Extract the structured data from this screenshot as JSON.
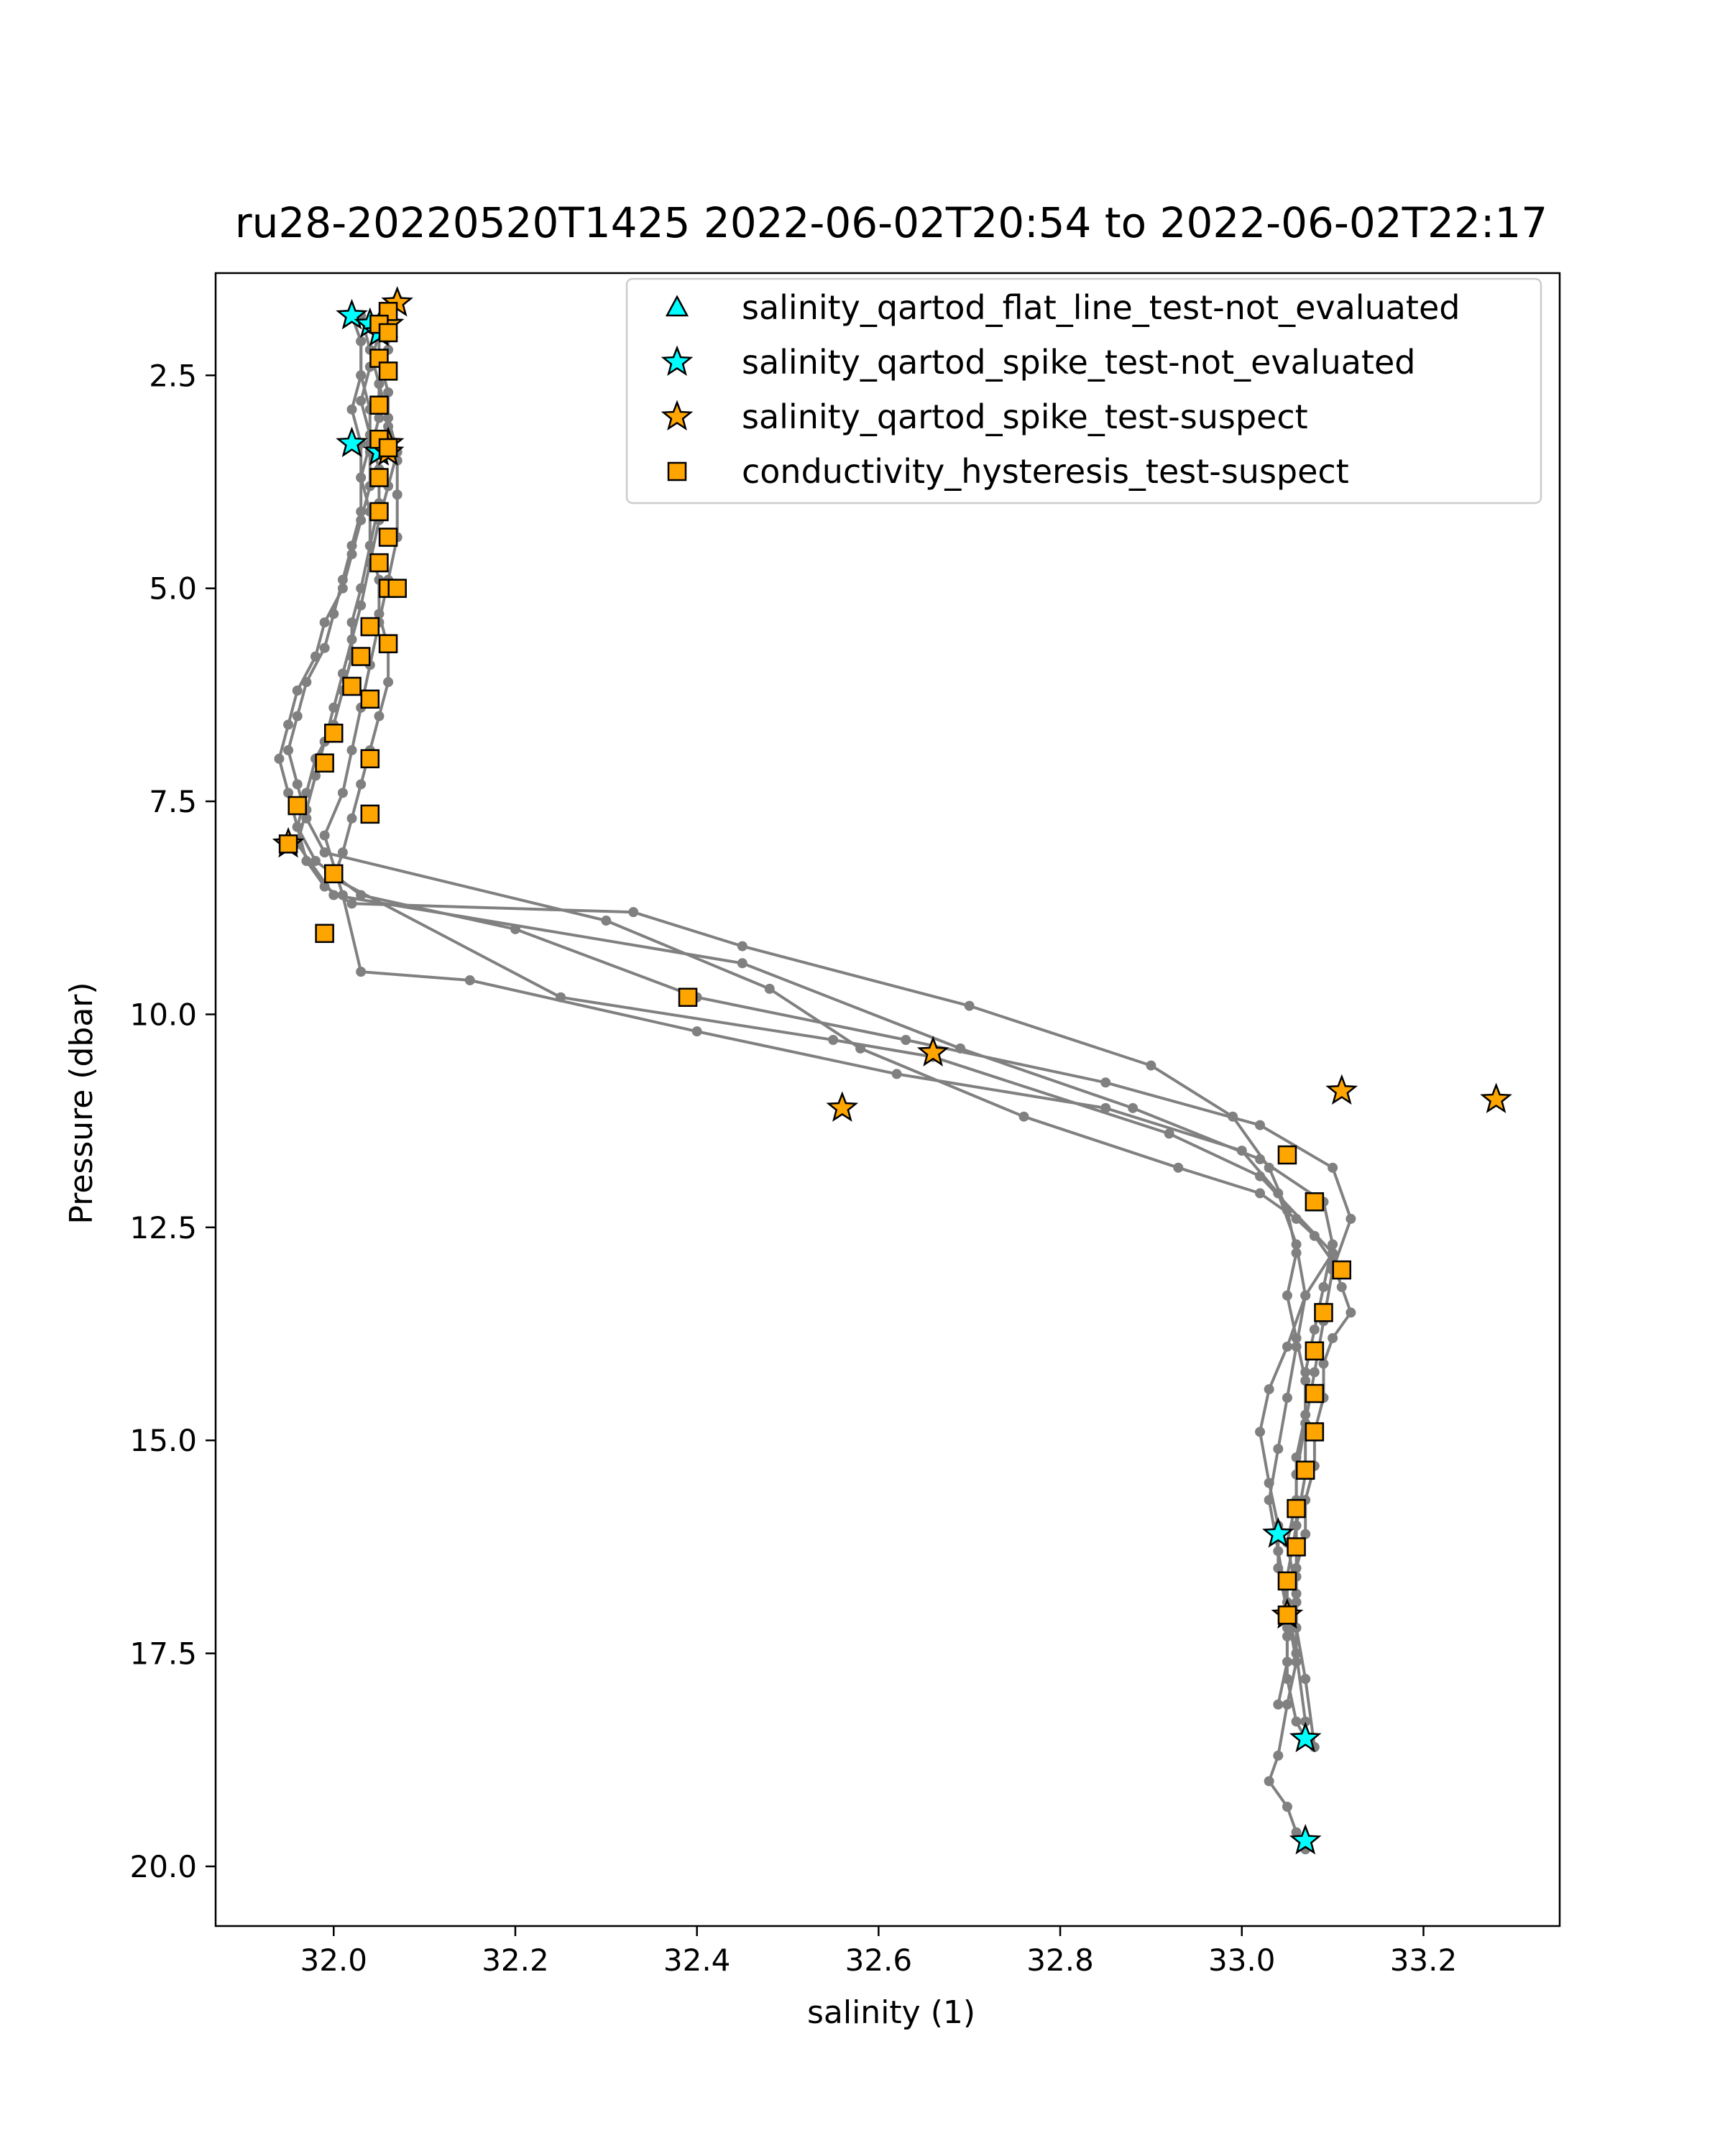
{
  "chart_data": {
    "type": "scatter",
    "title": "ru28-20220520T1425 2022-06-02T20:54 to 2022-06-02T22:17",
    "xlabel": "salinity (1)",
    "ylabel": "Pressure (dbar)",
    "xlim": [
      31.87,
      33.35
    ],
    "ylim": [
      20.7,
      1.3
    ],
    "y_inverted": true,
    "grid": false,
    "legend_position": "top-right",
    "x_ticks": [
      {
        "value": 32.0,
        "label": "32.0"
      },
      {
        "value": 32.2,
        "label": "32.2"
      },
      {
        "value": 32.4,
        "label": "32.4"
      },
      {
        "value": 32.6,
        "label": "32.6"
      },
      {
        "value": 32.8,
        "label": "32.8"
      },
      {
        "value": 33.0,
        "label": "33.0"
      },
      {
        "value": 33.2,
        "label": "33.2"
      }
    ],
    "y_ticks": [
      {
        "value": 2.5,
        "label": "2.5"
      },
      {
        "value": 5.0,
        "label": "5.0"
      },
      {
        "value": 7.5,
        "label": "7.5"
      },
      {
        "value": 10.0,
        "label": "10.0"
      },
      {
        "value": 12.5,
        "label": "12.5"
      },
      {
        "value": 15.0,
        "label": "15.0"
      },
      {
        "value": 17.5,
        "label": "17.5"
      },
      {
        "value": 20.0,
        "label": "20.0"
      }
    ],
    "colors": {
      "profile_line": "#808080",
      "cyan": "#00ffff",
      "orange": "#ffa500",
      "edge": "#000000"
    },
    "profiles": [
      {
        "x": [
          32.06,
          32.05,
          32.04,
          32.03,
          32.04,
          32.05,
          32.05,
          32.04,
          32.03,
          32.02,
          32.02,
          32.01,
          32.0,
          31.98,
          31.97,
          31.96,
          31.97,
          31.99,
          32.02,
          32.33,
          32.45,
          32.7,
          32.9,
          32.99,
          33.03,
          33.05,
          33.06,
          33.05,
          33.06,
          33.07,
          33.07,
          33.06,
          33.06,
          33.05,
          33.05,
          33.05,
          33.06,
          33.07
        ],
        "y": [
          1.7,
          2.0,
          2.4,
          2.8,
          3.2,
          3.6,
          4.0,
          4.5,
          5.0,
          5.4,
          5.8,
          6.2,
          6.6,
          7.0,
          7.4,
          7.8,
          8.2,
          8.5,
          8.7,
          8.8,
          9.2,
          9.9,
          10.6,
          11.2,
          11.8,
          12.3,
          12.8,
          13.3,
          13.8,
          14.3,
          14.8,
          15.4,
          16.0,
          16.6,
          17.2,
          17.8,
          18.3,
          18.5
        ]
      },
      {
        "x": [
          32.02,
          32.03,
          32.03,
          32.04,
          32.04,
          32.03,
          32.03,
          32.02,
          32.01,
          32.0,
          31.99,
          31.97,
          31.96,
          31.95,
          31.96,
          31.97,
          31.99,
          32.3,
          32.48,
          32.58,
          32.76,
          32.93,
          33.02,
          33.06,
          33.08,
          33.1,
          33.11,
          33.12,
          33.1,
          33.09,
          33.09,
          33.08,
          33.08,
          33.07,
          33.07,
          33.06,
          33.06,
          33.05,
          33.05,
          33.04
        ],
        "y": [
          1.8,
          2.1,
          2.5,
          2.9,
          3.3,
          3.7,
          4.1,
          4.5,
          4.9,
          5.3,
          5.7,
          6.1,
          6.5,
          6.9,
          7.3,
          7.7,
          8.1,
          8.9,
          9.7,
          10.4,
          11.2,
          11.8,
          12.1,
          12.4,
          12.6,
          12.9,
          13.2,
          13.5,
          13.8,
          14.1,
          14.5,
          14.9,
          15.3,
          15.7,
          16.1,
          16.5,
          16.9,
          17.3,
          17.6,
          18.1
        ]
      },
      {
        "x": [
          32.07,
          32.06,
          32.06,
          32.05,
          32.05,
          32.04,
          32.04,
          32.03,
          32.02,
          32.01,
          31.99,
          31.98,
          31.96,
          31.95,
          31.94,
          31.95,
          31.96,
          31.98,
          32.03,
          32.2,
          32.4,
          32.63,
          32.85,
          33.02,
          33.1,
          33.12,
          33.1,
          33.09,
          33.08,
          33.07,
          33.07,
          33.06,
          33.06,
          33.06,
          33.07,
          33.08
        ],
        "y": [
          1.6,
          1.9,
          2.2,
          2.6,
          3.0,
          3.4,
          3.8,
          4.2,
          4.6,
          5.0,
          5.4,
          5.8,
          6.2,
          6.6,
          7.0,
          7.4,
          7.8,
          8.2,
          8.6,
          9.0,
          9.8,
          10.3,
          10.8,
          11.3,
          11.8,
          12.4,
          13.0,
          13.6,
          14.2,
          14.8,
          15.4,
          16.0,
          16.6,
          17.2,
          17.8,
          18.6
        ]
      },
      {
        "x": [
          32.05,
          32.05,
          32.06,
          32.06,
          32.07,
          32.07,
          32.07,
          32.06,
          32.05,
          32.04,
          32.03,
          32.02,
          32.01,
          31.99,
          32.01,
          32.03,
          32.15,
          32.4,
          32.62,
          32.85,
          33.0,
          33.04,
          33.06,
          33.07,
          33.06,
          33.05,
          33.04,
          33.03,
          33.04,
          33.05,
          33.06
        ],
        "y": [
          2.0,
          2.3,
          2.7,
          3.1,
          3.5,
          3.9,
          4.4,
          4.9,
          5.4,
          5.9,
          6.4,
          6.9,
          7.4,
          7.9,
          8.6,
          9.5,
          9.6,
          10.2,
          10.7,
          11.1,
          11.6,
          12.1,
          12.7,
          13.3,
          13.9,
          14.5,
          15.1,
          15.7,
          16.3,
          16.9,
          17.5
        ]
      },
      {
        "x": [
          32.03,
          32.04,
          32.05,
          32.06,
          32.07,
          32.06,
          32.05,
          32.04,
          32.03,
          32.02,
          32.01,
          32.0,
          31.99,
          31.98,
          31.97,
          31.96,
          32.0,
          32.45,
          32.69,
          32.88,
          33.02,
          33.09,
          33.1,
          33.09,
          33.08,
          33.07,
          33.07,
          33.06,
          33.06,
          33.05,
          33.06,
          33.06,
          33.07
        ],
        "y": [
          1.8,
          2.2,
          2.6,
          3.0,
          3.4,
          3.8,
          4.2,
          4.7,
          5.2,
          5.6,
          6.0,
          6.4,
          6.8,
          7.2,
          7.6,
          8.0,
          8.6,
          9.4,
          10.4,
          11.1,
          11.7,
          12.2,
          12.7,
          13.2,
          13.7,
          14.2,
          14.7,
          15.2,
          15.7,
          16.2,
          16.8,
          17.5,
          18.3
        ]
      },
      {
        "x": [
          32.03,
          32.03,
          32.02,
          32.03,
          32.03,
          32.04,
          32.04,
          32.05,
          32.05,
          32.06,
          32.06,
          32.05,
          32.04,
          32.03,
          32.02,
          32.01,
          32.0,
          32.25,
          32.55,
          32.66,
          32.92,
          33.02,
          33.1,
          33.07,
          33.05,
          33.03,
          33.02,
          33.03,
          33.04,
          33.04,
          33.05,
          33.06,
          33.05,
          33.04,
          33.03,
          33.05,
          33.06,
          33.07
        ],
        "y": [
          2.1,
          2.5,
          2.9,
          3.3,
          3.7,
          4.1,
          4.5,
          4.9,
          5.3,
          5.7,
          6.1,
          6.5,
          6.9,
          7.3,
          7.7,
          8.1,
          8.4,
          9.8,
          10.3,
          10.5,
          11.4,
          11.9,
          12.8,
          13.3,
          13.9,
          14.4,
          14.9,
          15.5,
          16.0,
          16.5,
          17.0,
          17.6,
          18.1,
          18.7,
          19.0,
          19.3,
          19.6,
          19.8
        ]
      }
    ],
    "series": [
      {
        "name": "salinity_qartod_flat_line_test-not_evaluated",
        "marker": "triangle",
        "color": "#00ffff",
        "points": [
          [
            32.05,
            1.9
          ]
        ]
      },
      {
        "name": "salinity_qartod_spike_test-not_evaluated",
        "marker": "star",
        "color": "#00ffff",
        "points": [
          [
            32.02,
            1.8
          ],
          [
            32.04,
            1.9
          ],
          [
            32.05,
            2.0
          ],
          [
            32.02,
            3.3
          ],
          [
            32.05,
            3.4
          ],
          [
            33.04,
            16.1
          ],
          [
            33.07,
            18.5
          ],
          [
            33.07,
            19.7
          ]
        ]
      },
      {
        "name": "salinity_qartod_spike_test-suspect",
        "marker": "star",
        "color": "#ffa500",
        "points": [
          [
            32.07,
            1.65
          ],
          [
            32.06,
            1.9
          ],
          [
            32.06,
            3.3
          ],
          [
            32.06,
            3.4
          ],
          [
            31.95,
            8.0
          ],
          [
            32.56,
            11.1
          ],
          [
            32.66,
            10.45
          ],
          [
            33.11,
            10.9
          ],
          [
            33.28,
            11.0
          ],
          [
            33.05,
            17.05
          ]
        ]
      },
      {
        "name": "conductivity_hysteresis_test-suspect",
        "marker": "square",
        "color": "#ffa500",
        "points": [
          [
            32.06,
            1.75
          ],
          [
            32.05,
            1.9
          ],
          [
            32.06,
            2.0
          ],
          [
            32.05,
            2.3
          ],
          [
            32.06,
            2.45
          ],
          [
            32.05,
            2.85
          ],
          [
            32.05,
            3.25
          ],
          [
            32.06,
            3.35
          ],
          [
            32.05,
            3.7
          ],
          [
            32.05,
            4.1
          ],
          [
            32.06,
            4.4
          ],
          [
            32.05,
            4.7
          ],
          [
            32.06,
            5.0
          ],
          [
            32.07,
            5.0
          ],
          [
            32.04,
            5.45
          ],
          [
            32.06,
            5.65
          ],
          [
            32.03,
            5.8
          ],
          [
            32.04,
            6.3
          ],
          [
            32.02,
            6.15
          ],
          [
            32.0,
            6.7
          ],
          [
            32.04,
            7.0
          ],
          [
            31.99,
            7.05
          ],
          [
            31.96,
            7.55
          ],
          [
            32.04,
            7.65
          ],
          [
            31.95,
            8.0
          ],
          [
            32.0,
            8.35
          ],
          [
            31.99,
            9.05
          ],
          [
            32.39,
            9.8
          ],
          [
            33.05,
            11.65
          ],
          [
            33.08,
            12.2
          ],
          [
            33.11,
            13.0
          ],
          [
            33.09,
            13.5
          ],
          [
            33.08,
            13.95
          ],
          [
            33.08,
            14.45
          ],
          [
            33.08,
            14.9
          ],
          [
            33.07,
            15.35
          ],
          [
            33.06,
            15.8
          ],
          [
            33.06,
            16.25
          ],
          [
            33.05,
            16.65
          ],
          [
            33.05,
            17.05
          ]
        ]
      }
    ]
  }
}
